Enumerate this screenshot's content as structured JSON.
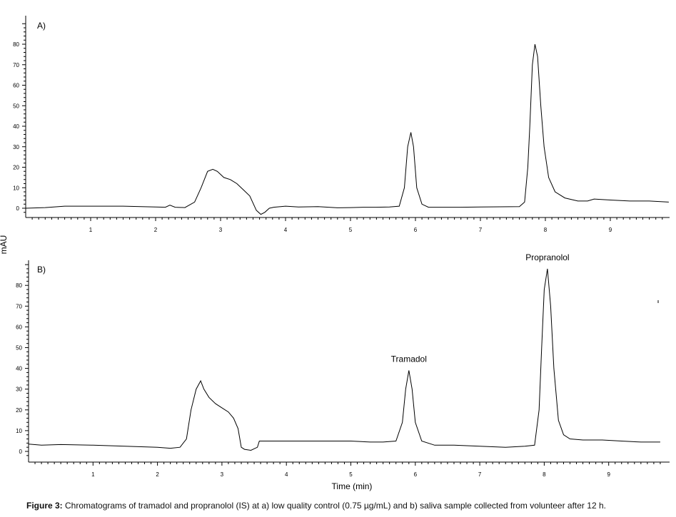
{
  "caption": {
    "label": "Figure 3:",
    "text": "Chromatograms of tramadol and propranolol (IS) at a) low quality control (0.75 µg/mL) and b) saliva sample collected from volunteer after 12 h."
  },
  "chart_data": [
    {
      "type": "line",
      "panel_label": "A)",
      "ylabel": "mAU",
      "xlabel": "",
      "xlim": [
        0,
        9.9
      ],
      "ylim": [
        -3,
        92
      ],
      "xticks": [
        1,
        2,
        3,
        4,
        5,
        6,
        7,
        8,
        9
      ],
      "yticks": [
        0,
        10,
        20,
        30,
        40,
        50,
        60,
        70,
        80
      ],
      "annotations": [],
      "series": [
        {
          "x": [
            0,
            0.3,
            0.6,
            1.0,
            1.5,
            2.0,
            2.15,
            2.22,
            2.3,
            2.45,
            2.6,
            2.7,
            2.8,
            2.88,
            2.95,
            3.05,
            3.15,
            3.25,
            3.35,
            3.45,
            3.55,
            3.62,
            3.68,
            3.75,
            3.82,
            4.0,
            4.2,
            4.5,
            4.8,
            5.0,
            5.2,
            5.4,
            5.6,
            5.75,
            5.83,
            5.88,
            5.93,
            5.97,
            6.02,
            6.1,
            6.2,
            6.4,
            6.7,
            7.0,
            7.3,
            7.6,
            7.68,
            7.73,
            7.76,
            7.8,
            7.84,
            7.88,
            7.93,
            7.98,
            8.05,
            8.15,
            8.3,
            8.5,
            8.65,
            8.75,
            9.0,
            9.3,
            9.6,
            9.9
          ],
          "y": [
            0,
            0.3,
            1,
            1,
            1,
            0.6,
            0.5,
            1.5,
            0.5,
            0.3,
            3,
            10,
            18,
            19,
            18,
            15,
            14,
            12,
            9,
            6,
            -1,
            -3,
            -2,
            0,
            0.5,
            1,
            0.6,
            0.8,
            0.2,
            0.3,
            0.5,
            0.5,
            0.6,
            1,
            10,
            30,
            37,
            30,
            10,
            2,
            0.5,
            0.5,
            0.5,
            0.6,
            0.7,
            0.8,
            3,
            20,
            40,
            70,
            80,
            74,
            50,
            30,
            15,
            8,
            5,
            3.5,
            3.5,
            4.5,
            4,
            3.5,
            3.5,
            3
          ]
        }
      ]
    },
    {
      "type": "line",
      "panel_label": "B)",
      "ylabel": "",
      "xlabel": "Time (min)",
      "xlim": [
        0,
        9.9
      ],
      "ylim": [
        -3,
        92
      ],
      "xticks": [
        1,
        2,
        3,
        4,
        5,
        6,
        7,
        8,
        9
      ],
      "yticks": [
        0,
        10,
        20,
        30,
        40,
        50,
        60,
        70,
        80
      ],
      "annotations": [
        {
          "text": "Tramadol",
          "x": 5.9,
          "y": 39
        },
        {
          "text": "Propranolol",
          "x": 8.05,
          "y": 88
        }
      ],
      "series": [
        {
          "x": [
            0,
            0.2,
            0.5,
            1.0,
            1.5,
            2.0,
            2.2,
            2.35,
            2.45,
            2.52,
            2.6,
            2.67,
            2.72,
            2.8,
            2.9,
            3.0,
            3.1,
            3.18,
            3.25,
            3.3,
            3.35,
            3.45,
            3.55,
            3.58,
            3.65,
            3.8,
            4.0,
            4.5,
            5.0,
            5.3,
            5.5,
            5.7,
            5.8,
            5.85,
            5.9,
            5.95,
            6.0,
            6.1,
            6.3,
            6.6,
            7.0,
            7.4,
            7.7,
            7.85,
            7.92,
            7.96,
            8.0,
            8.05,
            8.1,
            8.15,
            8.22,
            8.3,
            8.4,
            8.6,
            8.9,
            9.2,
            9.5,
            9.8
          ],
          "y": [
            3.5,
            3,
            3.3,
            3,
            2.5,
            2,
            1.5,
            2,
            6,
            20,
            30,
            34,
            30,
            26,
            23,
            21,
            19,
            16,
            11,
            2,
            1,
            0.5,
            2,
            5,
            5,
            5,
            5,
            5,
            5,
            4.5,
            4.5,
            5,
            14,
            30,
            39,
            30,
            14,
            5,
            3,
            3,
            2.5,
            2,
            2.5,
            3,
            20,
            50,
            78,
            88,
            70,
            40,
            15,
            8,
            6,
            5.5,
            5.5,
            5,
            4.5,
            4.5
          ]
        }
      ]
    }
  ]
}
